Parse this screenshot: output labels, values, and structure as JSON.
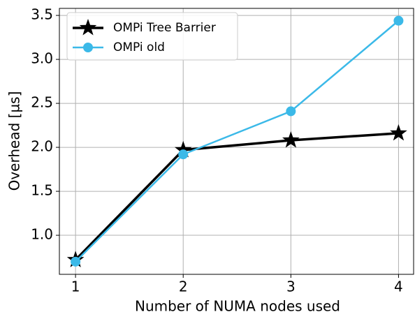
{
  "chart_data": {
    "type": "line",
    "x_label": "Number of NUMA nodes used",
    "y_label": "Overhead [µs]",
    "x": [
      1,
      2,
      3,
      4
    ],
    "series": [
      {
        "name": "OMPi Tree Barrier",
        "color": "#000000",
        "marker": "star",
        "values": [
          0.72,
          1.97,
          2.08,
          2.16
        ]
      },
      {
        "name": "OMPi old",
        "color": "#3bb9e8",
        "marker": "circle",
        "values": [
          0.7,
          1.92,
          2.41,
          3.44
        ]
      }
    ],
    "xlim": [
      0.85,
      4.14
    ],
    "xticks": [
      1,
      2,
      3,
      4
    ],
    "ylim": [
      0.556,
      3.58
    ],
    "yticks": [
      {
        "value": 1,
        "label": "1.0"
      },
      1.5,
      {
        "value": 2,
        "label": "2.0"
      },
      2.5,
      {
        "value": 3,
        "label": "3.0"
      },
      3.5
    ],
    "grid": true,
    "legend": "upper-left"
  }
}
